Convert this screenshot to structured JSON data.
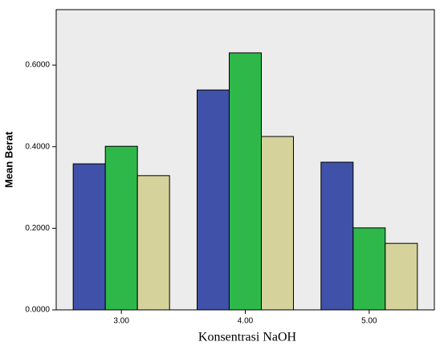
{
  "chart_data": {
    "type": "bar",
    "x_label": "Konsentrasi NaOH",
    "y_label": "Mean Berat",
    "categories": [
      "3.00",
      "4.00",
      "5.00"
    ],
    "series": [
      {
        "color": "#3f51a8",
        "values": [
          0.358,
          0.539,
          0.362
        ]
      },
      {
        "color": "#2fb84a",
        "values": [
          0.401,
          0.63,
          0.201
        ]
      },
      {
        "color": "#d6d29c",
        "values": [
          0.329,
          0.425,
          0.163
        ]
      }
    ],
    "ylim": [
      0,
      0.736
    ],
    "yticks": [
      {
        "value": 0,
        "label": "0.0000"
      },
      {
        "value": 0.2,
        "label": "0.2000"
      },
      {
        "value": 0.4,
        "label": "0.4000"
      },
      {
        "value": 0.6,
        "label": "0.6000"
      }
    ],
    "plot_background": "#ececec"
  }
}
